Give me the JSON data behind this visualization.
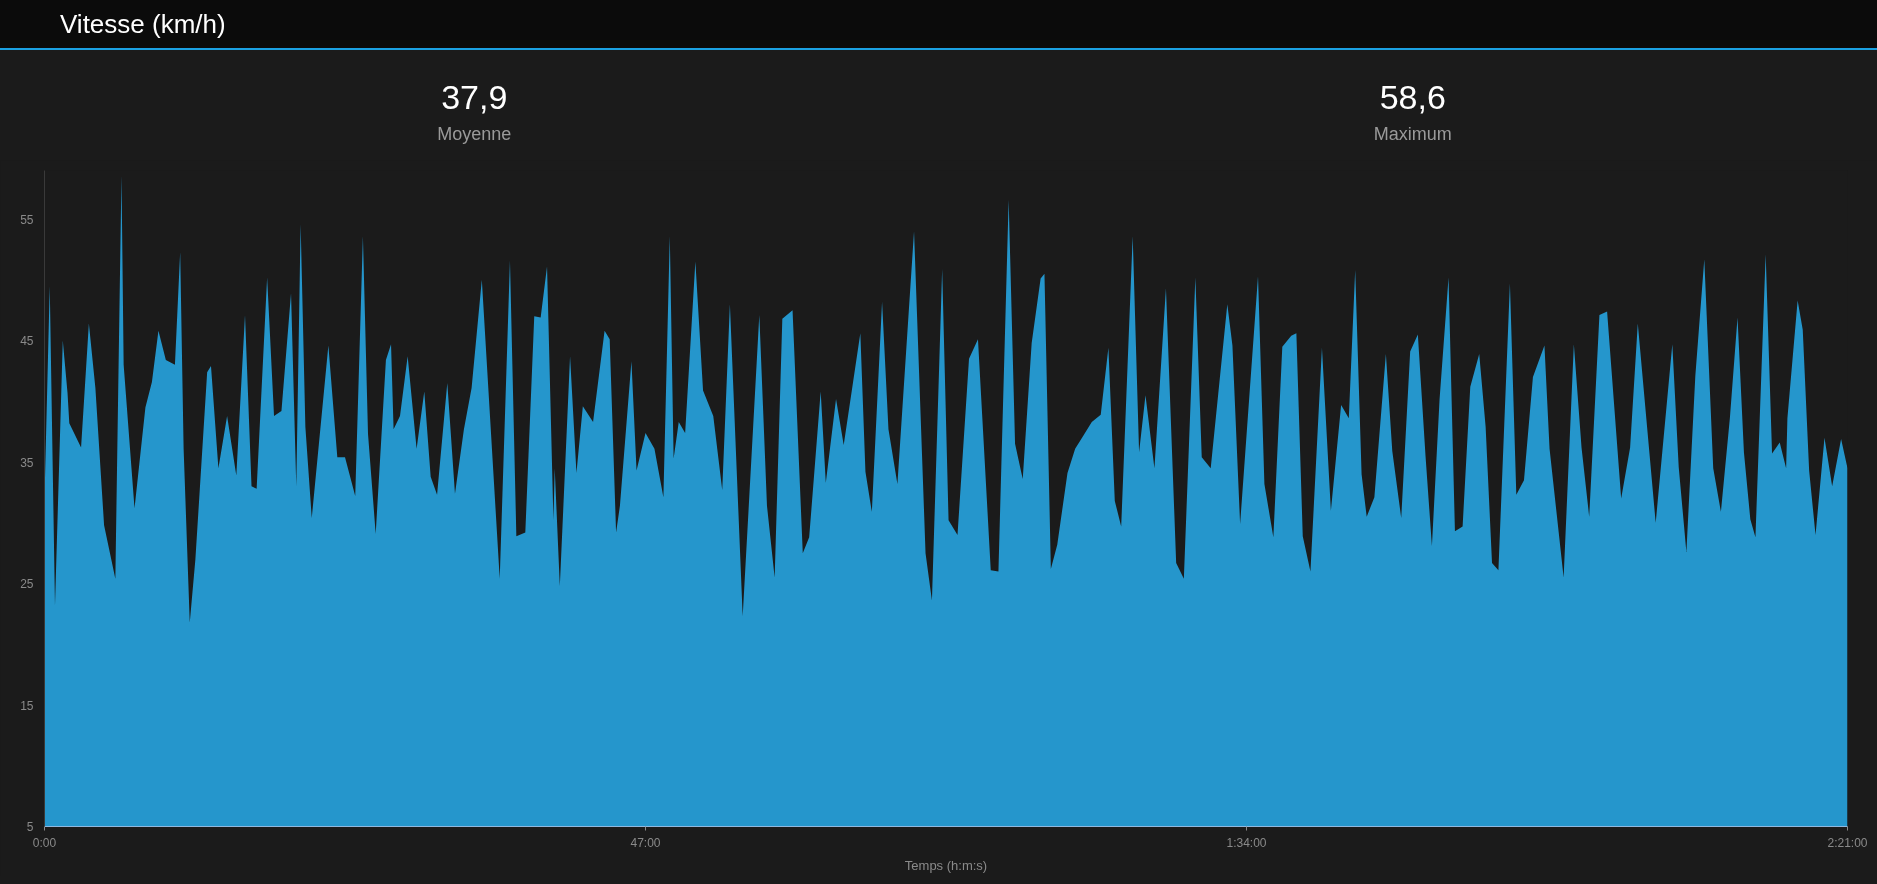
{
  "chart_data": {
    "type": "area",
    "title": "Vitesse (km/h)",
    "xlabel": "Temps (h:m:s)",
    "annotations": [
      "37,9",
      "Moyenne",
      "58,6",
      "Maximum"
    ],
    "x": [
      0,
      0.41,
      0.82,
      1.43,
      1.8,
      1.94,
      2.86,
      3.47,
      3.98,
      4.66,
      5.54,
      6.02,
      6.19,
      7.04,
      7.89,
      8.4,
      8.91,
      9.49,
      10.2,
      10.61,
      10.88,
      11.36,
      11.8,
      12.72,
      13.02,
      13.6,
      14.28,
      15.0,
      15.68,
      16.19,
      16.59,
      17.41,
      17.95,
      18.53,
      19.28,
      19.69,
      20.03,
      20.4,
      20.9,
      22.2,
      22.9,
      23.5,
      24.3,
      24.9,
      25.3,
      25.9,
      26.7,
      27.1,
      27.3,
      27.8,
      28.4,
      29.1,
      29.7,
      30.2,
      30.7,
      31.5,
      32.1,
      32.8,
      33.4,
      34.2,
      35.6,
      36.4,
      36.9,
      37.6,
      38.3,
      38.8,
      39.3,
      39.8,
      39.9,
      40.3,
      41.1,
      41.6,
      42.1,
      42.9,
      43.8,
      44.2,
      44.7,
      45.0,
      45.9,
      46.3,
      47.0,
      47.7,
      48.4,
      48.9,
      49.2,
      49.6,
      50.1,
      50.9,
      51.5,
      52.3,
      53.0,
      53.6,
      54.6,
      55.9,
      56.5,
      57.1,
      57.7,
      58.5,
      59.3,
      59.8,
      60.7,
      61.1,
      61.9,
      62.5,
      63.8,
      64.2,
      64.7,
      65.5,
      66.0,
      66.7,
      68.0,
      68.9,
      69.4,
      70.2,
      70.7,
      71.4,
      72.3,
      73.0,
      74.0,
      74.6,
      75.4,
      75.9,
      76.5,
      77.2,
      77.9,
      78.2,
      78.7,
      79.2,
      80.0,
      80.6,
      81.2,
      81.9,
      82.6,
      83.2,
      83.7,
      84.2,
      85.1,
      85.6,
      86.1,
      86.8,
      87.7,
      88.5,
      89.1,
      90.0,
      90.5,
      91.2,
      92.5,
      92.9,
      93.5,
      94.9,
      95.4,
      96.1,
      96.8,
      97.5,
      97.9,
      98.4,
      99.0,
      99.9,
      100.6,
      101.4,
      102.0,
      102.5,
      103.0,
      103.4,
      104.0,
      104.9,
      105.4,
      106.1,
      106.8,
      107.4,
      108.0,
      108.5,
      109.1,
      109.8,
      110.3,
      110.9,
      111.5,
      112.2,
      112.7,
      113.2,
      113.7,
      114.6,
      115.1,
      115.7,
      116.4,
      117.3,
      117.7,
      118.8,
      119.6,
      120.2,
      120.8,
      121.6,
      122.2,
      123.3,
      124.0,
      124.6,
      126.0,
      127.3,
      127.8,
      128.4,
      129.1,
      129.8,
      130.5,
      131.1,
      131.8,
      132.4,
      132.9,
      133.4,
      133.8,
      134.6,
      135.1,
      135.7,
      136.2,
      136.3,
      137.1,
      137.5,
      138.0,
      138.5,
      139.2,
      139.8,
      140.5,
      141.0
    ],
    "series": [
      {
        "color": "#2596cc",
        "values": [
          32,
          49.5,
          23.2,
          45,
          40.7,
          38.2,
          36.2,
          46.4,
          41.1,
          29.8,
          25.4,
          58.6,
          43.0,
          31.2,
          39.5,
          41.6,
          45.8,
          43.4,
          43.0,
          52.3,
          36.1,
          21.8,
          27.0,
          42.4,
          42.9,
          34.5,
          38.8,
          33.9,
          47.1,
          33.0,
          32.8,
          50.2,
          38.8,
          39.2,
          48.9,
          33.0,
          54.6,
          37.9,
          30.4,
          44.6,
          35.4,
          35.4,
          32.2,
          53.6,
          37.3,
          29.1,
          43.4,
          44.7,
          37.7,
          38.8,
          43.7,
          36.1,
          40.8,
          33.8,
          32.3,
          41.5,
          32.4,
          37.7,
          41.1,
          50.0,
          25.4,
          51.6,
          28.9,
          29.2,
          47.0,
          46.9,
          51.1,
          30.2,
          34.5,
          24.8,
          43.7,
          34.1,
          39.6,
          38.3,
          45.8,
          45.1,
          29.2,
          31.4,
          43.3,
          34.3,
          37.4,
          36.1,
          32.1,
          53.6,
          35.3,
          38.3,
          37.4,
          51.5,
          40.9,
          38.8,
          32.7,
          48.0,
          22.3,
          47.1,
          31.4,
          25.5,
          46.8,
          47.5,
          27.5,
          28.8,
          40.8,
          33.3,
          40.2,
          36.4,
          45.6,
          34.2,
          30.9,
          48.2,
          37.7,
          33.2,
          54.0,
          27.5,
          23.6,
          50.9,
          30.2,
          29.0,
          43.5,
          45.1,
          26.1,
          26.0,
          56.6,
          36.5,
          33.6,
          44.8,
          50.1,
          50.5,
          26.2,
          28.2,
          34.1,
          36.1,
          37.1,
          38.3,
          38.9,
          44.4,
          31.8,
          29.7,
          53.6,
          35.8,
          40.5,
          34.5,
          49.3,
          26.7,
          25.4,
          50.2,
          35.4,
          34.5,
          48.0,
          44.6,
          29.9,
          50.3,
          33.2,
          28.8,
          44.5,
          45.4,
          45.6,
          28.9,
          26.0,
          44.4,
          31.0,
          39.7,
          38.6,
          50.8,
          34.0,
          30.5,
          32.1,
          43.9,
          35.9,
          30.4,
          44.1,
          45.5,
          35.5,
          28.1,
          40.2,
          50.2,
          29.3,
          29.7,
          41.2,
          43.9,
          37.9,
          26.7,
          26.1,
          49.7,
          32.3,
          33.5,
          42.0,
          44.6,
          36.1,
          25.5,
          44.7,
          36.2,
          30.5,
          47.1,
          47.4,
          32.0,
          36.2,
          46.4,
          30.0,
          44.7,
          34.6,
          27.6,
          42.1,
          51.7,
          34.5,
          30.9,
          38.6,
          46.9,
          35.8,
          30.3,
          28.8,
          52.1,
          35.7,
          36.6,
          34.5,
          38.6,
          48.3,
          45.9,
          34.3,
          29.0,
          37.0,
          33.0,
          36.9,
          34.5
        ]
      }
    ],
    "xlim": [
      0,
      141
    ],
    "xticks": [
      {
        "value": 0,
        "label": "0:00"
      },
      {
        "value": 47,
        "label": "47:00"
      },
      {
        "value": 94,
        "label": "1:34:00"
      },
      {
        "value": 141,
        "label": "2:21:00"
      }
    ],
    "ylim": [
      5,
      59
    ],
    "yticks": [
      5,
      15,
      25,
      35,
      45,
      55
    ],
    "grid": false
  }
}
